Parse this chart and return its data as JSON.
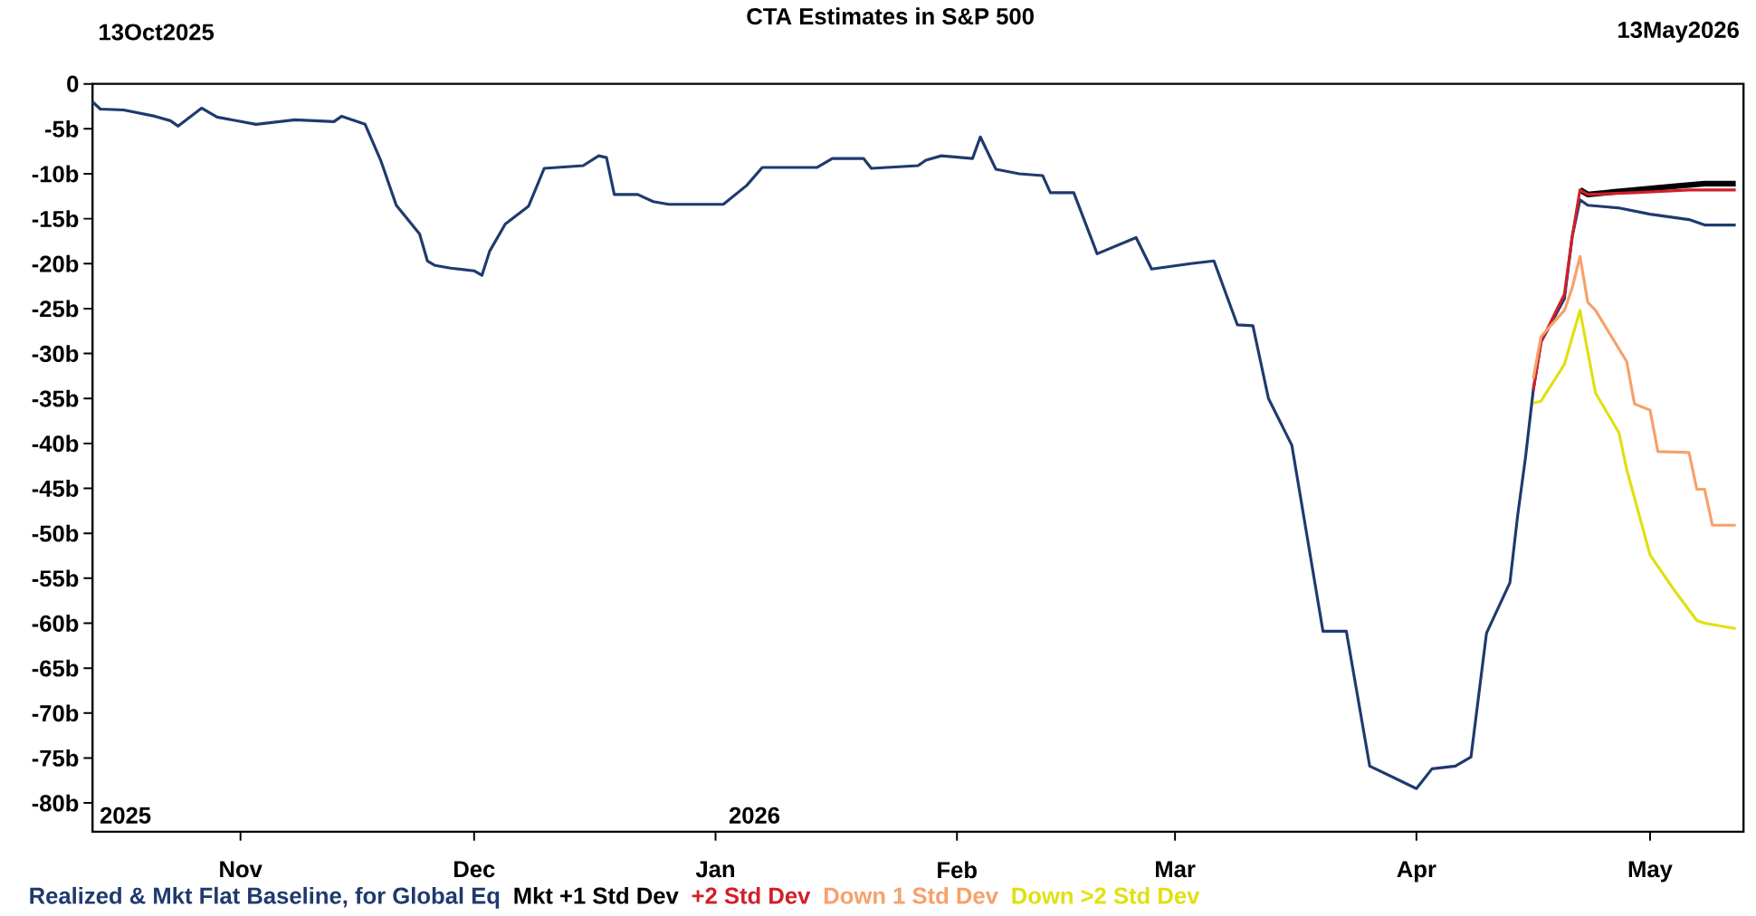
{
  "chart_data": {
    "type": "line",
    "title": "CTA Estimates in S&P 500",
    "annotations": [
      "13Oct2025",
      "13May2026",
      "2025",
      "2026"
    ],
    "xlim": [
      "2025-10-13",
      "2026-05-13"
    ],
    "xticks": [
      {
        "value": "2025-11-01",
        "label": "Nov"
      },
      {
        "value": "2025-12-01",
        "label": "Dec"
      },
      {
        "value": "2026-01-01",
        "label": "Jan"
      },
      {
        "value": "2026-02-01",
        "label": "Feb"
      },
      {
        "value": "2026-03-01",
        "label": "Mar"
      },
      {
        "value": "2026-04-01",
        "label": "Apr"
      },
      {
        "value": "2026-05-01",
        "label": "May"
      }
    ],
    "ylim": [
      -83.2,
      0
    ],
    "yticks": [
      0,
      {
        "value": -5,
        "label": "-5b"
      },
      {
        "value": -10,
        "label": "-10b"
      },
      {
        "value": -15,
        "label": "-15b"
      },
      {
        "value": -20,
        "label": "-20b"
      },
      {
        "value": -25,
        "label": "-25b"
      },
      {
        "value": -30,
        "label": "-30b"
      },
      {
        "value": -35,
        "label": "-35b"
      },
      {
        "value": -40,
        "label": "-40b"
      },
      {
        "value": -45,
        "label": "-45b"
      },
      {
        "value": -50,
        "label": "-50b"
      },
      {
        "value": -55,
        "label": "-55b"
      },
      {
        "value": -60,
        "label": "-60b"
      },
      {
        "value": -65,
        "label": "-65b"
      },
      {
        "value": -70,
        "label": "-70b"
      },
      {
        "value": -75,
        "label": "-75b"
      },
      {
        "value": -80,
        "label": "-80b"
      }
    ],
    "legend": "bottom",
    "series": [
      {
        "name": "Realized & Mkt Flat Baseline, for Global Eq",
        "color": "#1f3a6e",
        "x": [
          "2025-10-13",
          "2025-10-14",
          "2025-10-17",
          "2025-10-21",
          "2025-10-23",
          "2025-10-24",
          "2025-10-27",
          "2025-10-29",
          "2025-11-03",
          "2025-11-08",
          "2025-11-13",
          "2025-11-14",
          "2025-11-17",
          "2025-11-19",
          "2025-11-21",
          "2025-11-24",
          "2025-11-25",
          "2025-11-26",
          "2025-11-28",
          "2025-12-01",
          "2025-12-02",
          "2025-12-03",
          "2025-12-05",
          "2025-12-08",
          "2025-12-10",
          "2025-12-15",
          "2025-12-17",
          "2025-12-18",
          "2025-12-19",
          "2025-12-22",
          "2025-12-24",
          "2025-12-26",
          "2026-01-02",
          "2026-01-05",
          "2026-01-07",
          "2026-01-14",
          "2026-01-16",
          "2026-01-20",
          "2026-01-21",
          "2026-01-27",
          "2026-01-28",
          "2026-01-30",
          "2026-02-03",
          "2026-02-04",
          "2026-02-06",
          "2026-02-09",
          "2026-02-12",
          "2026-02-13",
          "2026-02-16",
          "2026-02-19",
          "2026-02-24",
          "2026-02-26",
          "2026-03-03",
          "2026-03-06",
          "2026-03-09",
          "2026-03-11",
          "2026-03-13",
          "2026-03-16",
          "2026-03-20",
          "2026-03-23",
          "2026-03-26",
          "2026-04-01",
          "2026-04-03",
          "2026-04-06",
          "2026-04-08",
          "2026-04-10",
          "2026-04-13",
          "2026-04-14",
          "2026-04-15",
          "2026-04-16",
          "2026-04-17",
          "2026-04-20",
          "2026-04-21",
          "2026-04-22",
          "2026-04-23",
          "2026-04-27",
          "2026-05-01",
          "2026-05-06",
          "2026-05-08",
          "2026-05-12"
        ],
        "values": [
          -2.0,
          -2.8,
          -2.9,
          -3.6,
          -4.1,
          -4.7,
          -2.7,
          -3.7,
          -4.5,
          -4.0,
          -4.2,
          -3.6,
          -4.5,
          -8.5,
          -13.5,
          -16.7,
          -19.7,
          -20.2,
          -20.5,
          -20.8,
          -21.3,
          -18.6,
          -15.6,
          -13.6,
          -9.4,
          -9.1,
          -8.0,
          -8.2,
          -12.3,
          -12.3,
          -13.1,
          -13.4,
          -13.4,
          -11.3,
          -9.3,
          -9.3,
          -8.3,
          -8.3,
          -9.4,
          -9.1,
          -8.5,
          -8.0,
          -8.3,
          -5.9,
          -9.5,
          -10.0,
          -10.2,
          -12.1,
          -12.1,
          -18.9,
          -17.1,
          -20.6,
          -20.0,
          -19.7,
          -26.8,
          -26.9,
          -35.0,
          -40.2,
          -60.9,
          -60.9,
          -75.9,
          -78.4,
          -76.2,
          -75.9,
          -74.9,
          -61.1,
          -55.5,
          -48.0,
          -41.6,
          -34.1,
          -28.7,
          -23.9,
          -17.0,
          -12.9,
          -13.5,
          -13.8,
          -14.5,
          -15.1,
          -15.7,
          -15.7
        ]
      },
      {
        "name": "Mkt +1 Std Dev",
        "color": "#000000",
        "x": [
          "2026-04-22",
          "2026-04-23",
          "2026-04-29",
          "2026-05-04",
          "2026-05-08",
          "2026-05-12"
        ],
        "values": [
          -11.8,
          -12.3,
          -11.8,
          -11.4,
          -11.1,
          -11.1
        ]
      },
      {
        "name": "+2 Std Dev",
        "color": "#d0202a",
        "x": [
          "2026-04-16",
          "2026-04-17",
          "2026-04-20",
          "2026-04-21",
          "2026-04-22",
          "2026-04-23",
          "2026-04-29",
          "2026-05-06",
          "2026-05-12"
        ],
        "values": [
          -34.1,
          -28.7,
          -23.4,
          -17.0,
          -11.8,
          -12.3,
          -12.1,
          -11.8,
          -11.8
        ]
      },
      {
        "name": "Down 1 Std Dev",
        "color": "#f8a06a",
        "x": [
          "2026-04-16",
          "2026-04-17",
          "2026-04-20",
          "2026-04-21",
          "2026-04-22",
          "2026-04-23",
          "2026-04-24",
          "2026-04-28",
          "2026-04-29",
          "2026-05-01",
          "2026-05-02",
          "2026-05-06",
          "2026-05-07",
          "2026-05-08",
          "2026-05-09",
          "2026-05-12"
        ],
        "values": [
          -32.8,
          -28.1,
          -25.2,
          -22.7,
          -19.2,
          -24.3,
          -25.2,
          -30.9,
          -35.6,
          -36.3,
          -40.9,
          -41.0,
          -45.1,
          -45.1,
          -49.1,
          -49.1
        ]
      },
      {
        "name": "Down >2 Std Dev",
        "color": "#e0e010",
        "x": [
          "2026-04-16",
          "2026-04-17",
          "2026-04-20",
          "2026-04-22",
          "2026-04-24",
          "2026-04-27",
          "2026-04-28",
          "2026-05-01",
          "2026-05-04",
          "2026-05-07",
          "2026-05-08",
          "2026-05-12"
        ],
        "values": [
          -35.5,
          -35.3,
          -31.2,
          -25.2,
          -34.4,
          -38.8,
          -42.9,
          -52.4,
          -56.2,
          -59.7,
          -60.0,
          -60.6
        ]
      }
    ]
  }
}
